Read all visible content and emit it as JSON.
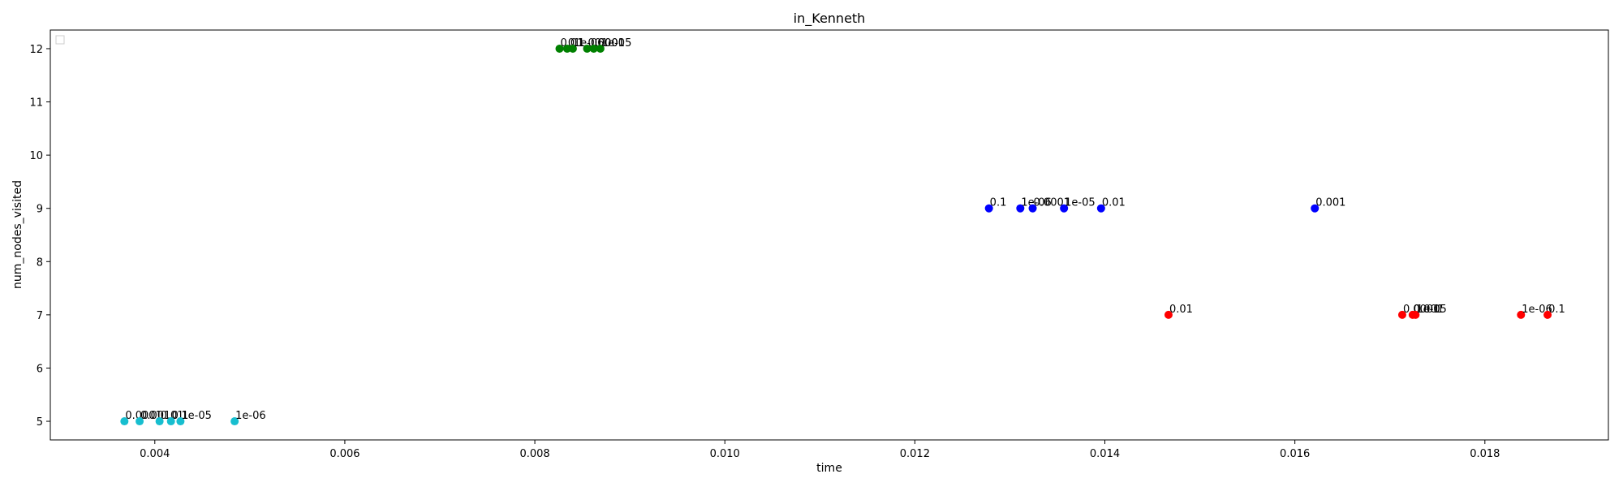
{
  "chart_data": {
    "type": "scatter",
    "title": "in_Kenneth",
    "xlabel": "time",
    "ylabel": "num_nodes_visited",
    "xlim": [
      0.0029,
      0.0193
    ],
    "ylim": [
      4.65,
      12.35
    ],
    "xticks": [
      0.004,
      0.006,
      0.008,
      0.01,
      0.012,
      0.014,
      0.016,
      0.018
    ],
    "xtick_labels": [
      "0.004",
      "0.006",
      "0.008",
      "0.010",
      "0.012",
      "0.014",
      "0.016",
      "0.018"
    ],
    "yticks": [
      5,
      6,
      7,
      8,
      9,
      10,
      11,
      12
    ],
    "ytick_labels": [
      "5",
      "6",
      "7",
      "8",
      "9",
      "10",
      "11",
      "12"
    ],
    "grid": false,
    "legend": "top-left, empty",
    "series": [
      {
        "color": "#17becf",
        "points": [
          {
            "x": 0.00368,
            "y": 5,
            "label": "0.0001"
          },
          {
            "x": 0.00384,
            "y": 5,
            "label": "0.001"
          },
          {
            "x": 0.00405,
            "y": 5,
            "label": "0.01"
          },
          {
            "x": 0.00417,
            "y": 5,
            "label": "0.1"
          },
          {
            "x": 0.00427,
            "y": 5,
            "label": "1e-05"
          },
          {
            "x": 0.00484,
            "y": 5,
            "label": "1e-06"
          }
        ]
      },
      {
        "color": "#008000",
        "points": [
          {
            "x": 0.00826,
            "y": 12,
            "label": "0.01"
          },
          {
            "x": 0.00834,
            "y": 12,
            "label": "0.1"
          },
          {
            "x": 0.0084,
            "y": 12,
            "label": "1e-06"
          },
          {
            "x": 0.00855,
            "y": 12,
            "label": "0.0001"
          },
          {
            "x": 0.00862,
            "y": 12,
            "label": "0.001"
          },
          {
            "x": 0.00869,
            "y": 12,
            "label": "1e-05"
          }
        ]
      },
      {
        "color": "#0000ff",
        "points": [
          {
            "x": 0.01278,
            "y": 9,
            "label": "0.1"
          },
          {
            "x": 0.01311,
            "y": 9,
            "label": "1e-06"
          },
          {
            "x": 0.01324,
            "y": 9,
            "label": "0.0001"
          },
          {
            "x": 0.01357,
            "y": 9,
            "label": "1e-05"
          },
          {
            "x": 0.01396,
            "y": 9,
            "label": "0.01"
          },
          {
            "x": 0.01621,
            "y": 9,
            "label": "0.001"
          }
        ]
      },
      {
        "color": "#ff0000",
        "points": [
          {
            "x": 0.01467,
            "y": 7,
            "label": "0.01"
          },
          {
            "x": 0.01713,
            "y": 7,
            "label": "0.0001"
          },
          {
            "x": 0.01724,
            "y": 7,
            "label": "0.001"
          },
          {
            "x": 0.01727,
            "y": 7,
            "label": "1e-05"
          },
          {
            "x": 0.01838,
            "y": 7,
            "label": "1e-06"
          },
          {
            "x": 0.01866,
            "y": 7,
            "label": "0.1"
          }
        ]
      }
    ]
  }
}
